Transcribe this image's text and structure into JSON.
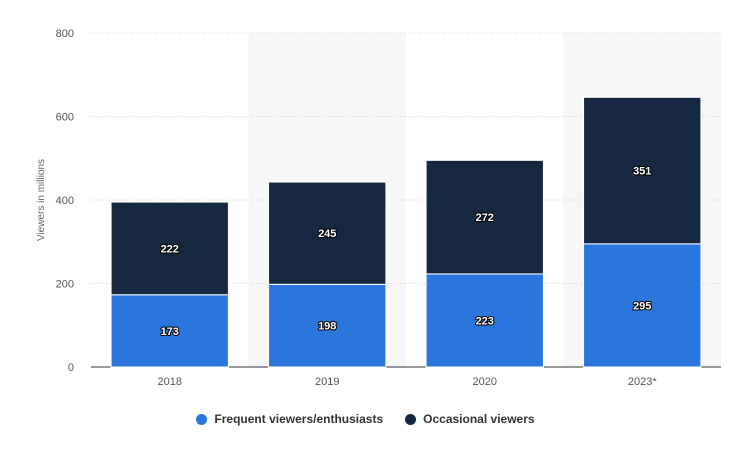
{
  "chart_data": {
    "type": "bar",
    "stacked": true,
    "categories": [
      "2018",
      "2019",
      "2020",
      "2023*"
    ],
    "series": [
      {
        "name": "Frequent viewers/enthusiasts",
        "color": "#2a76dd",
        "values": [
          173,
          198,
          223,
          295
        ]
      },
      {
        "name": "Occasional viewers",
        "color": "#15283f",
        "values": [
          222,
          245,
          272,
          351
        ]
      }
    ],
    "ylabel": "Viewers in millions",
    "xlabel": "",
    "ylim": [
      0,
      800
    ],
    "yticks": [
      0,
      200,
      400,
      600,
      800
    ],
    "grid": true,
    "legend_position": "bottom-center"
  }
}
